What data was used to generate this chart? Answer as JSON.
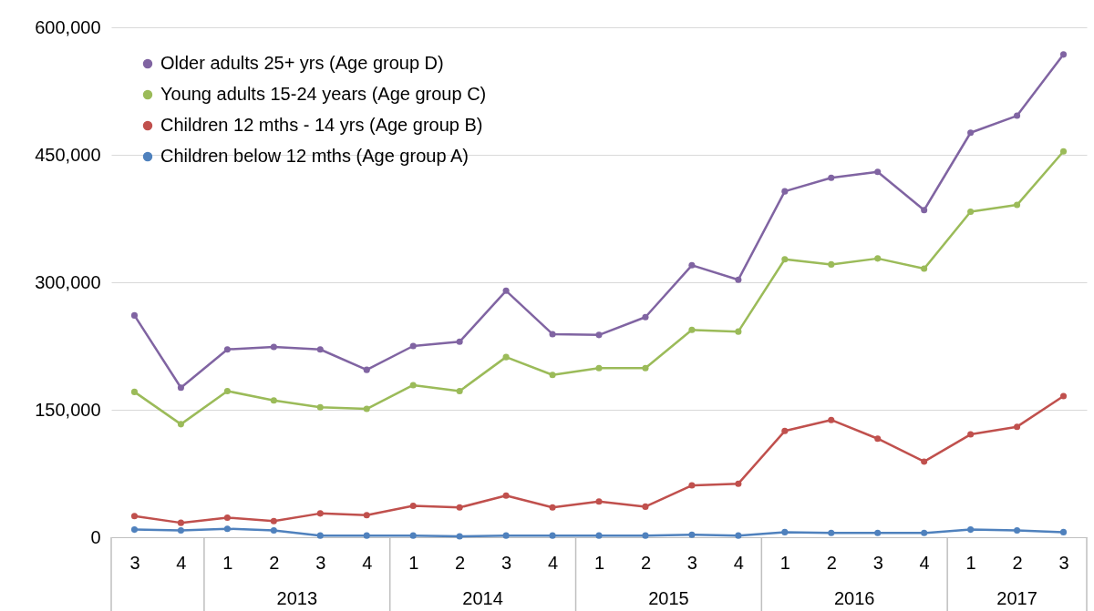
{
  "chart_data": {
    "type": "line",
    "categories": [
      "3",
      "4",
      "1",
      "2",
      "3",
      "4",
      "1",
      "2",
      "3",
      "4",
      "1",
      "2",
      "3",
      "4",
      "1",
      "2",
      "3",
      "4",
      "1",
      "2",
      "3"
    ],
    "annotations": [
      "2013",
      "2014",
      "2015",
      "2016",
      "2017"
    ],
    "ylim": [
      0,
      600000
    ],
    "yticks": [
      {
        "value": 0,
        "label": "0"
      },
      {
        "value": 150000,
        "label": "150,000"
      },
      {
        "value": 300000,
        "label": "300,000"
      },
      {
        "value": 450000,
        "label": "450,000"
      },
      {
        "value": 600000,
        "label": "600,000"
      }
    ],
    "grid": "y",
    "legend": "top left",
    "marker": "circle",
    "line_style": "solid",
    "series": [
      {
        "name": "Older adults 25+ yrs (Age group D)",
        "color": "#8064a2",
        "values": [
          261000,
          176000,
          221000,
          224000,
          221000,
          197000,
          225000,
          230000,
          290000,
          239000,
          238000,
          259000,
          320000,
          303000,
          407000,
          423000,
          430000,
          385000,
          476000,
          496000,
          568000
        ]
      },
      {
        "name": "Young adults 15-24 years (Age group C)",
        "color": "#9bbb59",
        "values": [
          171000,
          133000,
          172000,
          161000,
          153000,
          151000,
          179000,
          172000,
          212000,
          191000,
          199000,
          199000,
          244000,
          242000,
          327000,
          321000,
          328000,
          316000,
          383000,
          391000,
          454000
        ]
      },
      {
        "name": "Children 12 mths - 14 yrs (Age group B)",
        "color": "#c0504d",
        "values": [
          25000,
          17000,
          23000,
          19000,
          28000,
          26000,
          37000,
          35000,
          49000,
          35000,
          42000,
          36000,
          61000,
          63000,
          125000,
          138000,
          116000,
          89000,
          121000,
          130000,
          166000
        ]
      },
      {
        "name": "Children below 12 mths (Age group A)",
        "color": "#4f81bd",
        "values": [
          9000,
          8000,
          10000,
          8000,
          2000,
          2000,
          2000,
          1000,
          2000,
          2000,
          2000,
          2000,
          3000,
          2000,
          6000,
          5000,
          5000,
          5000,
          9000,
          8000,
          6000
        ]
      }
    ]
  }
}
